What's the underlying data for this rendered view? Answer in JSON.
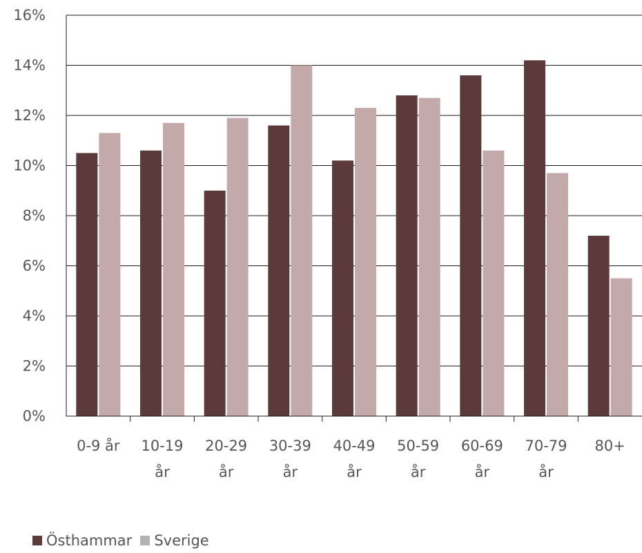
{
  "chart_data": {
    "type": "bar",
    "categories": [
      [
        "0-9 år"
      ],
      [
        "10-19",
        "år"
      ],
      [
        "20-29",
        "år"
      ],
      [
        "30-39",
        "år"
      ],
      [
        "40-49",
        "år"
      ],
      [
        "50-59",
        "år"
      ],
      [
        "60-69",
        "år"
      ],
      [
        "70-79",
        "år"
      ],
      [
        "80+"
      ]
    ],
    "series": [
      {
        "name": "Östhammar",
        "color": "#5c3a3c",
        "values": [
          10.5,
          10.6,
          9.0,
          11.6,
          10.2,
          12.8,
          13.6,
          14.2,
          7.2
        ]
      },
      {
        "name": "Sverige",
        "color": "#c3a9aa",
        "values": [
          11.3,
          11.7,
          11.9,
          14.0,
          12.3,
          12.7,
          10.6,
          9.7,
          5.5
        ]
      }
    ],
    "ylim": [
      0,
      16
    ],
    "yticks": [
      "0%",
      "2%",
      "4%",
      "6%",
      "8%",
      "10%",
      "12%",
      "14%",
      "16%"
    ],
    "ytick_values": [
      0,
      2,
      4,
      6,
      8,
      10,
      12,
      14,
      16
    ],
    "grid": true,
    "legend_position": "bottom-left"
  },
  "legend": {
    "series1_label": "Östhammar",
    "series1_color": "#5c3a3c",
    "series2_label": "Sverige",
    "series2_color": "#b3b3b3"
  }
}
